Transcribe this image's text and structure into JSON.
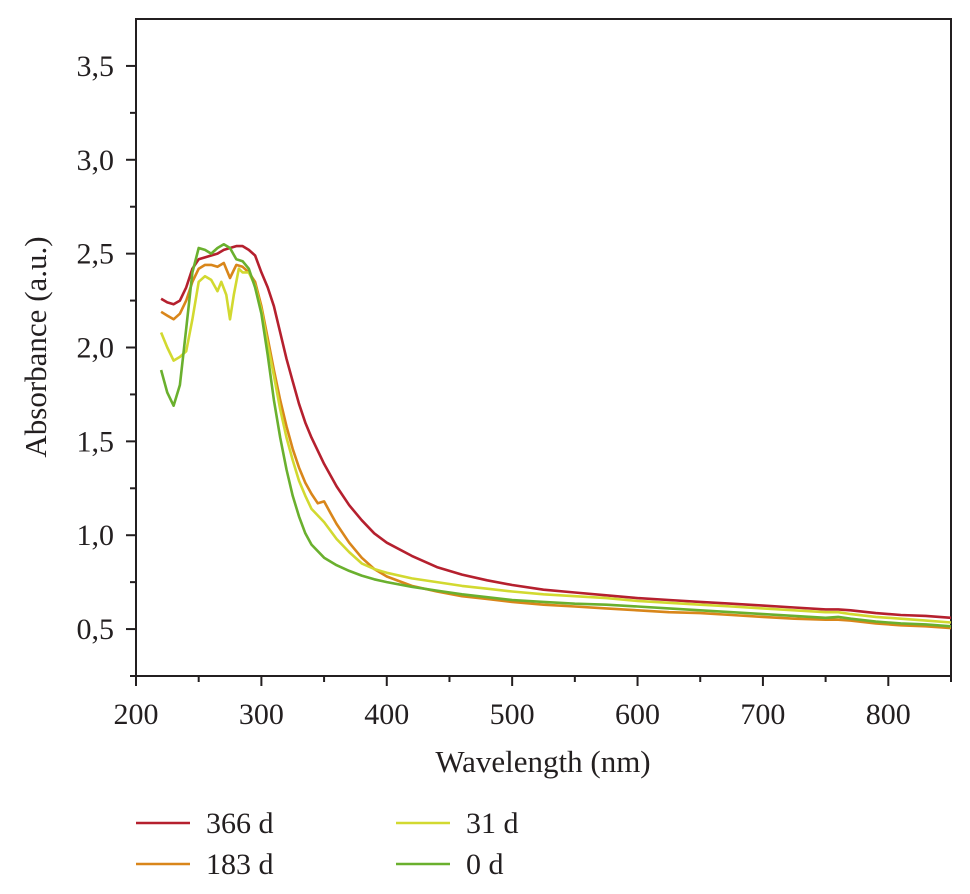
{
  "chart_data": {
    "type": "line",
    "xlabel": "Wavelength (nm)",
    "ylabel": "Absorbance (a.u.)",
    "xlim": [
      200,
      850
    ],
    "ylim": [
      0.25,
      3.75
    ],
    "xticks": [
      200,
      300,
      400,
      500,
      600,
      700,
      800
    ],
    "xtick_labels": [
      "200",
      "300",
      "400",
      "500",
      "600",
      "700",
      "800"
    ],
    "yticks": [
      0.5,
      1.0,
      1.5,
      2.0,
      2.5,
      3.0,
      3.5
    ],
    "ytick_labels": [
      "0,5",
      "1,0",
      "1,5",
      "2,0",
      "2,5",
      "3,0",
      "3,5"
    ],
    "grid": false,
    "legend_position": "bottom",
    "series": [
      {
        "name": "366 d",
        "color": "#b5202e",
        "points": [
          [
            220,
            2.26
          ],
          [
            225,
            2.24
          ],
          [
            230,
            2.23
          ],
          [
            235,
            2.25
          ],
          [
            240,
            2.32
          ],
          [
            245,
            2.42
          ],
          [
            250,
            2.47
          ],
          [
            255,
            2.48
          ],
          [
            260,
            2.49
          ],
          [
            265,
            2.5
          ],
          [
            270,
            2.52
          ],
          [
            275,
            2.53
          ],
          [
            280,
            2.54
          ],
          [
            285,
            2.54
          ],
          [
            290,
            2.52
          ],
          [
            295,
            2.49
          ],
          [
            300,
            2.4
          ],
          [
            305,
            2.32
          ],
          [
            310,
            2.22
          ],
          [
            315,
            2.08
          ],
          [
            320,
            1.94
          ],
          [
            325,
            1.82
          ],
          [
            330,
            1.7
          ],
          [
            335,
            1.6
          ],
          [
            340,
            1.52
          ],
          [
            350,
            1.38
          ],
          [
            360,
            1.26
          ],
          [
            370,
            1.16
          ],
          [
            380,
            1.08
          ],
          [
            390,
            1.01
          ],
          [
            400,
            0.96
          ],
          [
            420,
            0.89
          ],
          [
            440,
            0.83
          ],
          [
            460,
            0.79
          ],
          [
            480,
            0.76
          ],
          [
            500,
            0.735
          ],
          [
            525,
            0.71
          ],
          [
            550,
            0.695
          ],
          [
            575,
            0.68
          ],
          [
            600,
            0.665
          ],
          [
            625,
            0.655
          ],
          [
            650,
            0.645
          ],
          [
            675,
            0.635
          ],
          [
            700,
            0.625
          ],
          [
            725,
            0.615
          ],
          [
            750,
            0.605
          ],
          [
            760,
            0.605
          ],
          [
            770,
            0.6
          ],
          [
            790,
            0.585
          ],
          [
            810,
            0.575
          ],
          [
            830,
            0.57
          ],
          [
            850,
            0.56
          ]
        ]
      },
      {
        "name": "183 d",
        "color": "#d9861a",
        "points": [
          [
            220,
            2.19
          ],
          [
            225,
            2.17
          ],
          [
            230,
            2.15
          ],
          [
            235,
            2.18
          ],
          [
            240,
            2.25
          ],
          [
            245,
            2.35
          ],
          [
            250,
            2.42
          ],
          [
            255,
            2.44
          ],
          [
            260,
            2.44
          ],
          [
            265,
            2.43
          ],
          [
            270,
            2.45
          ],
          [
            275,
            2.37
          ],
          [
            280,
            2.44
          ],
          [
            285,
            2.43
          ],
          [
            290,
            2.4
          ],
          [
            295,
            2.35
          ],
          [
            300,
            2.22
          ],
          [
            305,
            2.05
          ],
          [
            310,
            1.88
          ],
          [
            315,
            1.72
          ],
          [
            320,
            1.58
          ],
          [
            325,
            1.46
          ],
          [
            330,
            1.36
          ],
          [
            335,
            1.28
          ],
          [
            340,
            1.22
          ],
          [
            345,
            1.17
          ],
          [
            350,
            1.18
          ],
          [
            355,
            1.12
          ],
          [
            360,
            1.06
          ],
          [
            370,
            0.96
          ],
          [
            380,
            0.88
          ],
          [
            390,
            0.82
          ],
          [
            400,
            0.78
          ],
          [
            420,
            0.73
          ],
          [
            440,
            0.7
          ],
          [
            460,
            0.675
          ],
          [
            480,
            0.66
          ],
          [
            500,
            0.645
          ],
          [
            525,
            0.63
          ],
          [
            550,
            0.62
          ],
          [
            575,
            0.61
          ],
          [
            600,
            0.6
          ],
          [
            625,
            0.59
          ],
          [
            650,
            0.585
          ],
          [
            675,
            0.575
          ],
          [
            700,
            0.565
          ],
          [
            725,
            0.555
          ],
          [
            750,
            0.55
          ],
          [
            760,
            0.55
          ],
          [
            770,
            0.545
          ],
          [
            790,
            0.53
          ],
          [
            810,
            0.52
          ],
          [
            830,
            0.515
          ],
          [
            850,
            0.505
          ]
        ]
      },
      {
        "name": "31 d",
        "color": "#d2d930",
        "points": [
          [
            220,
            2.08
          ],
          [
            225,
            2.0
          ],
          [
            230,
            1.93
          ],
          [
            235,
            1.95
          ],
          [
            240,
            1.98
          ],
          [
            245,
            2.15
          ],
          [
            250,
            2.35
          ],
          [
            255,
            2.38
          ],
          [
            260,
            2.36
          ],
          [
            265,
            2.3
          ],
          [
            268,
            2.35
          ],
          [
            272,
            2.28
          ],
          [
            275,
            2.15
          ],
          [
            278,
            2.28
          ],
          [
            282,
            2.42
          ],
          [
            285,
            2.4
          ],
          [
            290,
            2.4
          ],
          [
            295,
            2.33
          ],
          [
            300,
            2.2
          ],
          [
            305,
            2.02
          ],
          [
            310,
            1.85
          ],
          [
            315,
            1.67
          ],
          [
            320,
            1.52
          ],
          [
            325,
            1.4
          ],
          [
            330,
            1.29
          ],
          [
            335,
            1.21
          ],
          [
            340,
            1.14
          ],
          [
            350,
            1.07
          ],
          [
            360,
            0.98
          ],
          [
            370,
            0.91
          ],
          [
            380,
            0.85
          ],
          [
            390,
            0.82
          ],
          [
            400,
            0.8
          ],
          [
            420,
            0.77
          ],
          [
            440,
            0.75
          ],
          [
            460,
            0.73
          ],
          [
            480,
            0.715
          ],
          [
            500,
            0.7
          ],
          [
            525,
            0.685
          ],
          [
            550,
            0.675
          ],
          [
            575,
            0.665
          ],
          [
            600,
            0.65
          ],
          [
            625,
            0.64
          ],
          [
            650,
            0.63
          ],
          [
            675,
            0.62
          ],
          [
            700,
            0.61
          ],
          [
            725,
            0.6
          ],
          [
            750,
            0.59
          ],
          [
            760,
            0.59
          ],
          [
            770,
            0.58
          ],
          [
            790,
            0.565
          ],
          [
            810,
            0.555
          ],
          [
            830,
            0.545
          ],
          [
            850,
            0.535
          ]
        ]
      },
      {
        "name": "0 d",
        "color": "#6ab02e",
        "points": [
          [
            220,
            1.88
          ],
          [
            225,
            1.76
          ],
          [
            230,
            1.69
          ],
          [
            235,
            1.8
          ],
          [
            240,
            2.1
          ],
          [
            245,
            2.4
          ],
          [
            250,
            2.53
          ],
          [
            255,
            2.52
          ],
          [
            260,
            2.5
          ],
          [
            265,
            2.53
          ],
          [
            270,
            2.55
          ],
          [
            275,
            2.53
          ],
          [
            280,
            2.47
          ],
          [
            285,
            2.46
          ],
          [
            290,
            2.42
          ],
          [
            295,
            2.32
          ],
          [
            300,
            2.18
          ],
          [
            305,
            1.96
          ],
          [
            310,
            1.72
          ],
          [
            315,
            1.52
          ],
          [
            320,
            1.35
          ],
          [
            325,
            1.21
          ],
          [
            330,
            1.1
          ],
          [
            335,
            1.01
          ],
          [
            340,
            0.95
          ],
          [
            350,
            0.88
          ],
          [
            360,
            0.84
          ],
          [
            370,
            0.81
          ],
          [
            380,
            0.785
          ],
          [
            390,
            0.765
          ],
          [
            400,
            0.75
          ],
          [
            420,
            0.725
          ],
          [
            440,
            0.705
          ],
          [
            460,
            0.685
          ],
          [
            480,
            0.67
          ],
          [
            500,
            0.655
          ],
          [
            525,
            0.645
          ],
          [
            550,
            0.635
          ],
          [
            575,
            0.63
          ],
          [
            600,
            0.62
          ],
          [
            625,
            0.61
          ],
          [
            650,
            0.6
          ],
          [
            675,
            0.59
          ],
          [
            700,
            0.58
          ],
          [
            725,
            0.57
          ],
          [
            750,
            0.56
          ],
          [
            760,
            0.565
          ],
          [
            770,
            0.555
          ],
          [
            790,
            0.54
          ],
          [
            810,
            0.53
          ],
          [
            830,
            0.525
          ],
          [
            850,
            0.515
          ]
        ]
      }
    ]
  }
}
